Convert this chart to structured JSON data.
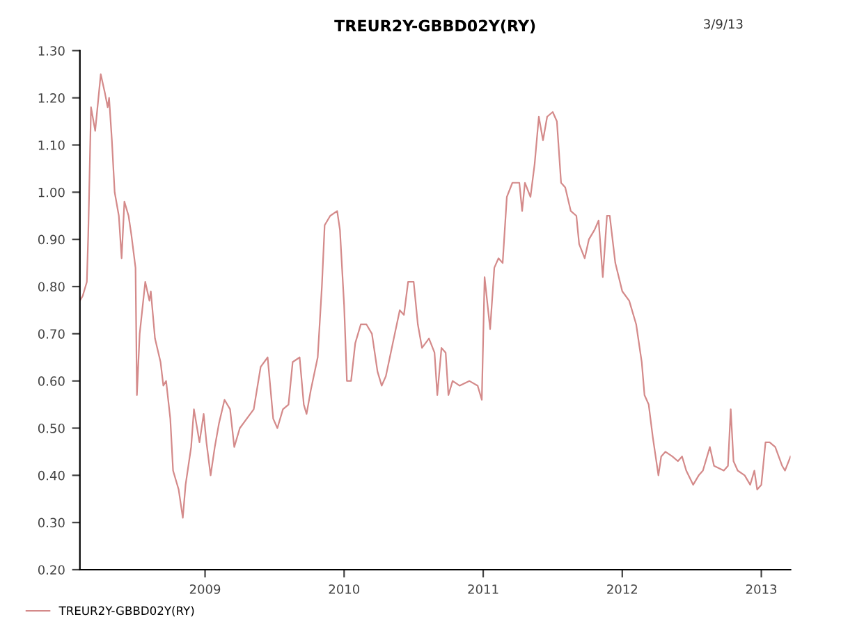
{
  "chart_data": {
    "type": "line",
    "title": "TREUR2Y-GBBD02Y(RY)",
    "annotations": [
      "3/9/13"
    ],
    "xlim": [
      2008.1,
      2013.21
    ],
    "xticks": [
      2009,
      2010,
      2011,
      2012,
      2013
    ],
    "ylim": [
      0.2,
      1.3
    ],
    "yticks": [
      {
        "value": 0.2,
        "label": "0.20"
      },
      {
        "value": 0.3,
        "label": "0.30"
      },
      {
        "value": 0.4,
        "label": "0.40"
      },
      {
        "value": 0.5,
        "label": "0.50"
      },
      {
        "value": 0.6,
        "label": "0.60"
      },
      {
        "value": 0.7,
        "label": "0.70"
      },
      {
        "value": 0.8,
        "label": "0.80"
      },
      {
        "value": 0.9,
        "label": "0.90"
      },
      {
        "value": 1.0,
        "label": "1.00"
      },
      {
        "value": 1.1,
        "label": "1.10"
      },
      {
        "value": 1.2,
        "label": "1.20"
      },
      {
        "value": 1.3,
        "label": "1.30"
      }
    ],
    "grid": false,
    "legend": "bottom left",
    "marker": "none",
    "line_style": "solid",
    "series": [
      {
        "name": "TREUR2Y-GBBD02Y(RY)",
        "color": "#d48a8a",
        "x": [
          2008.1,
          2008.12,
          2008.15,
          2008.16,
          2008.18,
          2008.21,
          2008.25,
          2008.28,
          2008.3,
          2008.31,
          2008.33,
          2008.35,
          2008.38,
          2008.4,
          2008.42,
          2008.45,
          2008.47,
          2008.5,
          2008.51,
          2008.53,
          2008.57,
          2008.6,
          2008.61,
          2008.64,
          2008.68,
          2008.7,
          2008.72,
          2008.75,
          2008.77,
          2008.81,
          2008.84,
          2008.86,
          2008.9,
          2008.92,
          2008.96,
          2008.99,
          2009.01,
          2009.04,
          2009.07,
          2009.1,
          2009.14,
          2009.18,
          2009.21,
          2009.25,
          2009.3,
          2009.35,
          2009.4,
          2009.45,
          2009.49,
          2009.52,
          2009.56,
          2009.6,
          2009.63,
          2009.68,
          2009.71,
          2009.73,
          2009.76,
          2009.81,
          2009.84,
          2009.86,
          2009.9,
          2009.95,
          2009.97,
          2010.0,
          2010.02,
          2010.05,
          2010.08,
          2010.12,
          2010.16,
          2010.2,
          2010.24,
          2010.27,
          2010.3,
          2010.35,
          2010.4,
          2010.43,
          2010.46,
          2010.5,
          2010.53,
          2010.56,
          2010.61,
          2010.65,
          2010.67,
          2010.7,
          2010.73,
          2010.75,
          2010.78,
          2010.83,
          2010.9,
          2010.96,
          2010.99,
          2011.01,
          2011.05,
          2011.08,
          2011.11,
          2011.14,
          2011.17,
          2011.21,
          2011.26,
          2011.28,
          2011.3,
          2011.34,
          2011.37,
          2011.4,
          2011.43,
          2011.46,
          2011.5,
          2011.53,
          2011.56,
          2011.59,
          2011.63,
          2011.67,
          2011.69,
          2011.73,
          2011.76,
          2011.8,
          2011.83,
          2011.86,
          2011.89,
          2011.91,
          2011.95,
          2012.0,
          2012.05,
          2012.1,
          2012.14,
          2012.16,
          2012.19,
          2012.22,
          2012.26,
          2012.28,
          2012.31,
          2012.36,
          2012.4,
          2012.43,
          2012.46,
          2012.51,
          2012.55,
          2012.58,
          2012.63,
          2012.66,
          2012.73,
          2012.76,
          2012.78,
          2012.8,
          2012.83,
          2012.88,
          2012.92,
          2012.95,
          2012.97,
          2013.0,
          2013.03,
          2013.06,
          2013.1,
          2013.15,
          2013.17,
          2013.21
        ],
        "values": [
          0.77,
          0.78,
          0.81,
          0.91,
          1.18,
          1.13,
          1.25,
          1.21,
          1.18,
          1.2,
          1.11,
          1.0,
          0.95,
          0.86,
          0.98,
          0.95,
          0.91,
          0.84,
          0.57,
          0.7,
          0.81,
          0.77,
          0.79,
          0.69,
          0.64,
          0.59,
          0.6,
          0.52,
          0.41,
          0.37,
          0.31,
          0.38,
          0.46,
          0.54,
          0.47,
          0.53,
          0.47,
          0.4,
          0.46,
          0.51,
          0.56,
          0.54,
          0.46,
          0.5,
          0.52,
          0.54,
          0.63,
          0.65,
          0.52,
          0.5,
          0.54,
          0.55,
          0.64,
          0.65,
          0.55,
          0.53,
          0.58,
          0.65,
          0.8,
          0.93,
          0.95,
          0.96,
          0.92,
          0.76,
          0.6,
          0.6,
          0.68,
          0.72,
          0.72,
          0.7,
          0.62,
          0.59,
          0.61,
          0.68,
          0.75,
          0.74,
          0.81,
          0.81,
          0.72,
          0.67,
          0.69,
          0.66,
          0.57,
          0.67,
          0.66,
          0.57,
          0.6,
          0.59,
          0.6,
          0.59,
          0.56,
          0.82,
          0.71,
          0.84,
          0.86,
          0.85,
          0.99,
          1.02,
          1.02,
          0.96,
          1.02,
          0.99,
          1.06,
          1.16,
          1.11,
          1.16,
          1.17,
          1.15,
          1.02,
          1.01,
          0.96,
          0.95,
          0.89,
          0.86,
          0.9,
          0.92,
          0.94,
          0.82,
          0.95,
          0.95,
          0.85,
          0.79,
          0.77,
          0.72,
          0.64,
          0.57,
          0.55,
          0.48,
          0.4,
          0.44,
          0.45,
          0.44,
          0.43,
          0.44,
          0.41,
          0.38,
          0.4,
          0.41,
          0.46,
          0.42,
          0.41,
          0.42,
          0.54,
          0.43,
          0.41,
          0.4,
          0.38,
          0.41,
          0.37,
          0.38,
          0.47,
          0.47,
          0.46,
          0.42,
          0.41,
          0.44
        ]
      }
    ]
  }
}
